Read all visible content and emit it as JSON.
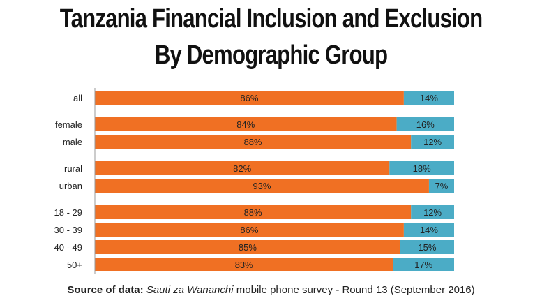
{
  "title_line1": "Tanzania Financial Inclusion and Exclusion",
  "title_line2": "By Demographic Group",
  "source": {
    "label": "Source of data:",
    "survey_name": "Sauti za Wananchi",
    "detail": "mobile phone survey - Round 13 (September 2016)"
  },
  "colors": {
    "included": "#f07023",
    "excluded": "#4bacc6"
  },
  "chart_data": {
    "type": "bar",
    "orientation": "horizontal",
    "stacked": true,
    "percent": true,
    "categories": [
      "all",
      "female",
      "male",
      "rural",
      "urban",
      "18 - 29",
      "30 - 39",
      "40 - 49",
      "50+"
    ],
    "groups": [
      [
        "all"
      ],
      [
        "female",
        "male"
      ],
      [
        "rural",
        "urban"
      ],
      [
        "18 - 29",
        "30 - 39",
        "40 - 49",
        "50+"
      ]
    ],
    "series": [
      {
        "values": [
          86,
          84,
          88,
          82,
          93,
          88,
          86,
          85,
          83
        ],
        "labels": [
          "86%",
          "84%",
          "88%",
          "82%",
          "93%",
          "88%",
          "86%",
          "85%",
          "83%"
        ]
      },
      {
        "values": [
          14,
          16,
          12,
          18,
          7,
          12,
          14,
          15,
          17
        ],
        "labels": [
          "14%",
          "16%",
          "12%",
          "18%",
          "7%",
          "12%",
          "14%",
          "15%",
          "17%"
        ]
      }
    ],
    "xlim": [
      0,
      100
    ],
    "legend": "none",
    "grid": false
  }
}
